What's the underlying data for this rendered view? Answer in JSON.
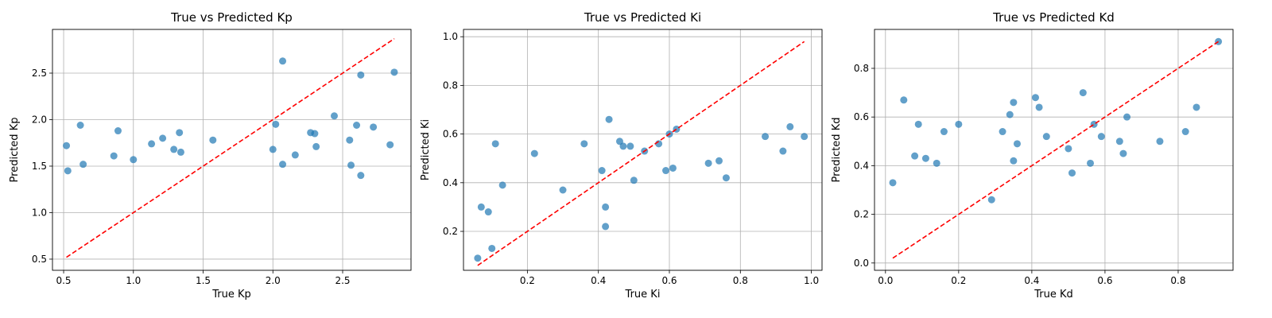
{
  "chart_data": [
    {
      "type": "scatter",
      "title": "True vs Predicted Kp",
      "xlabel": "True Kp",
      "ylabel": "Predicted Kp",
      "xlim": [
        0.42,
        2.99
      ],
      "ylim": [
        0.38,
        2.97
      ],
      "xticks": [
        0.5,
        1.0,
        1.5,
        2.0,
        2.5
      ],
      "yticks": [
        0.5,
        1.0,
        1.5,
        2.0,
        2.5
      ],
      "tick_decimals": 1,
      "grid": true,
      "point_color": "#1f77b4",
      "reference_line": {
        "x": [
          0.52,
          2.87
        ],
        "y": [
          0.52,
          2.87
        ],
        "color": "#ff0000",
        "style": "dashed"
      },
      "points": {
        "x": [
          0.52,
          0.53,
          0.62,
          0.64,
          0.86,
          0.89,
          1.0,
          1.13,
          1.21,
          1.29,
          1.33,
          1.34,
          1.57,
          2.0,
          2.02,
          2.07,
          2.07,
          2.16,
          2.27,
          2.3,
          2.31,
          2.44,
          2.55,
          2.56,
          2.6,
          2.63,
          2.63,
          2.72,
          2.84,
          2.87
        ],
        "y": [
          1.72,
          1.45,
          1.94,
          1.52,
          1.61,
          1.88,
          1.57,
          1.74,
          1.8,
          1.68,
          1.86,
          1.65,
          1.78,
          1.68,
          1.95,
          1.52,
          2.63,
          1.62,
          1.86,
          1.85,
          1.71,
          2.04,
          1.78,
          1.51,
          1.94,
          1.4,
          2.48,
          1.92,
          1.73,
          2.51
        ]
      }
    },
    {
      "type": "scatter",
      "title": "True vs Predicted Ki",
      "xlabel": "True Ki",
      "ylabel": "Predicted Ki",
      "xlim": [
        0.02,
        1.03
      ],
      "ylim": [
        0.04,
        1.03
      ],
      "xticks": [
        0.2,
        0.4,
        0.6,
        0.8,
        1.0
      ],
      "yticks": [
        0.2,
        0.4,
        0.6,
        0.8,
        1.0
      ],
      "tick_decimals": 1,
      "grid": true,
      "point_color": "#1f77b4",
      "reference_line": {
        "x": [
          0.06,
          0.98
        ],
        "y": [
          0.06,
          0.98
        ],
        "color": "#ff0000",
        "style": "dashed"
      },
      "points": {
        "x": [
          0.06,
          0.07,
          0.09,
          0.1,
          0.11,
          0.13,
          0.22,
          0.3,
          0.36,
          0.41,
          0.42,
          0.42,
          0.43,
          0.46,
          0.47,
          0.49,
          0.5,
          0.53,
          0.57,
          0.59,
          0.6,
          0.61,
          0.62,
          0.71,
          0.74,
          0.76,
          0.87,
          0.92,
          0.94,
          0.98
        ],
        "y": [
          0.09,
          0.3,
          0.28,
          0.13,
          0.56,
          0.39,
          0.52,
          0.37,
          0.56,
          0.45,
          0.3,
          0.22,
          0.66,
          0.57,
          0.55,
          0.55,
          0.41,
          0.53,
          0.56,
          0.45,
          0.6,
          0.46,
          0.62,
          0.48,
          0.49,
          0.42,
          0.59,
          0.53,
          0.63,
          0.59
        ]
      }
    },
    {
      "type": "scatter",
      "title": "True vs Predicted Kd",
      "xlabel": "True Kd",
      "ylabel": "Predicted Kd",
      "xlim": [
        -0.03,
        0.95
      ],
      "ylim": [
        -0.03,
        0.96
      ],
      "xticks": [
        0.0,
        0.2,
        0.4,
        0.6,
        0.8
      ],
      "yticks": [
        0.0,
        0.2,
        0.4,
        0.6,
        0.8
      ],
      "tick_decimals": 1,
      "grid": true,
      "point_color": "#1f77b4",
      "reference_line": {
        "x": [
          0.02,
          0.91
        ],
        "y": [
          0.02,
          0.91
        ],
        "color": "#ff0000",
        "style": "dashed"
      },
      "points": {
        "x": [
          0.02,
          0.05,
          0.08,
          0.09,
          0.11,
          0.14,
          0.16,
          0.2,
          0.29,
          0.32,
          0.34,
          0.35,
          0.35,
          0.36,
          0.41,
          0.42,
          0.44,
          0.5,
          0.51,
          0.54,
          0.56,
          0.57,
          0.59,
          0.64,
          0.65,
          0.66,
          0.75,
          0.82,
          0.85,
          0.91
        ],
        "y": [
          0.33,
          0.67,
          0.44,
          0.57,
          0.43,
          0.41,
          0.54,
          0.57,
          0.26,
          0.54,
          0.61,
          0.42,
          0.66,
          0.49,
          0.68,
          0.64,
          0.52,
          0.47,
          0.37,
          0.7,
          0.41,
          0.57,
          0.52,
          0.5,
          0.45,
          0.6,
          0.5,
          0.54,
          0.64,
          0.91
        ]
      }
    }
  ]
}
